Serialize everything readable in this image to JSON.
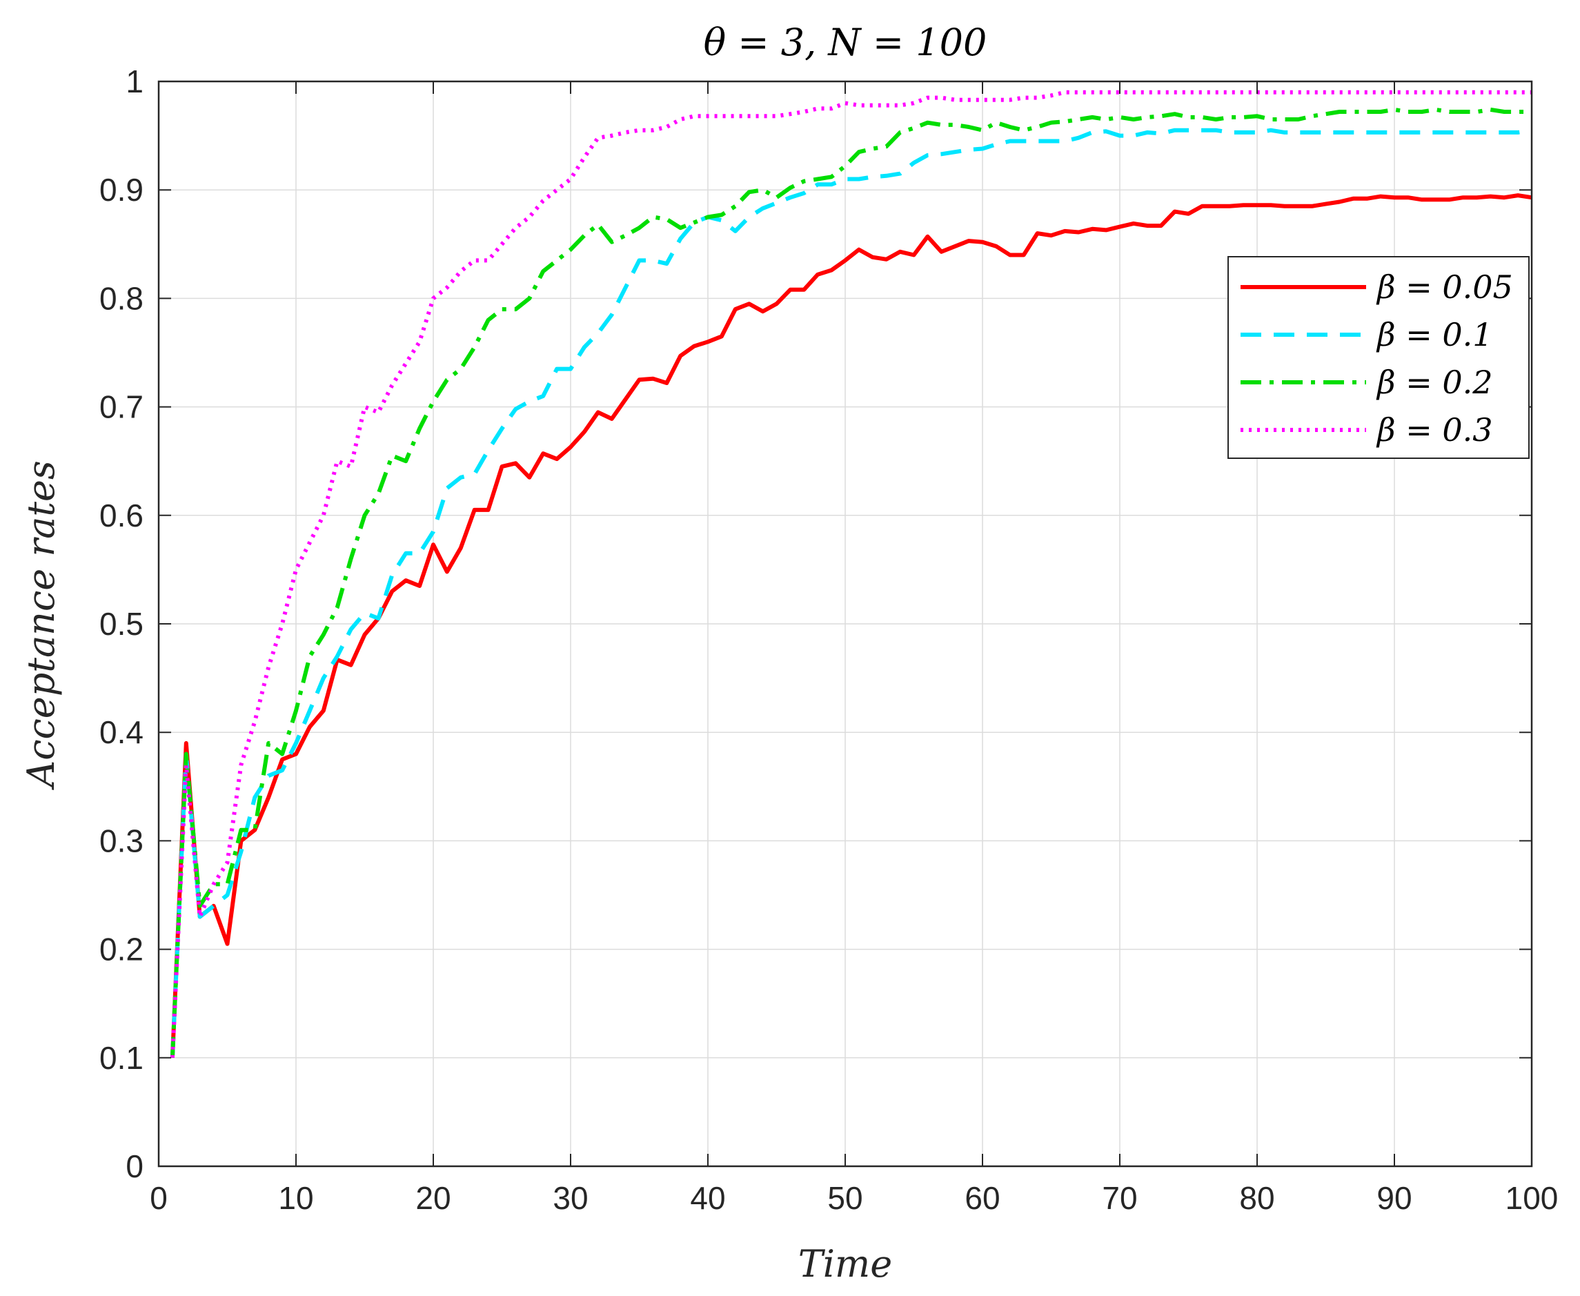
{
  "chart_data": {
    "type": "line",
    "title": "θ = 3, N = 100",
    "xlabel": "Time",
    "ylabel": "Acceptance rates",
    "xlim": [
      0,
      100
    ],
    "ylim": [
      0,
      1
    ],
    "xticks": [
      0,
      10,
      20,
      30,
      40,
      50,
      60,
      70,
      80,
      90,
      100
    ],
    "yticks": [
      0,
      0.1,
      0.2,
      0.3,
      0.4,
      0.5,
      0.6,
      0.7,
      0.8,
      0.9,
      1
    ],
    "xtick_labels": [
      "0",
      "10",
      "20",
      "30",
      "40",
      "50",
      "60",
      "70",
      "80",
      "90",
      "100"
    ],
    "ytick_labels": [
      "0",
      "0.1",
      "0.2",
      "0.3",
      "0.4",
      "0.5",
      "0.6",
      "0.7",
      "0.8",
      "0.9",
      "1"
    ],
    "grid": true,
    "legend_position": "right",
    "series": [
      {
        "name": "β = 0.05",
        "color": "#ff0000",
        "style": "solid",
        "x": [
          1,
          2,
          3,
          4,
          5,
          6,
          7,
          8,
          9,
          10,
          11,
          12,
          13,
          14,
          15,
          16,
          17,
          18,
          19,
          20,
          21,
          22,
          23,
          24,
          25,
          26,
          27,
          28,
          29,
          30,
          31,
          32,
          33,
          34,
          35,
          36,
          37,
          38,
          39,
          40,
          41,
          42,
          43,
          44,
          45,
          46,
          47,
          48,
          49,
          50,
          51,
          52,
          53,
          54,
          55,
          56,
          57,
          58,
          59,
          60,
          61,
          62,
          63,
          64,
          65,
          66,
          67,
          68,
          69,
          70,
          71,
          72,
          73,
          74,
          75,
          76,
          77,
          78,
          79,
          80,
          81,
          82,
          83,
          84,
          85,
          86,
          87,
          88,
          89,
          90,
          91,
          92,
          93,
          94,
          95,
          96,
          97,
          98,
          99,
          100
        ],
        "y": [
          0.1,
          0.39,
          0.23,
          0.24,
          0.205,
          0.3,
          0.31,
          0.34,
          0.375,
          0.38,
          0.405,
          0.42,
          0.467,
          0.462,
          0.49,
          0.505,
          0.53,
          0.54,
          0.535,
          0.573,
          0.548,
          0.57,
          0.605,
          0.605,
          0.645,
          0.648,
          0.635,
          0.657,
          0.652,
          0.663,
          0.677,
          0.695,
          0.689,
          0.707,
          0.725,
          0.726,
          0.722,
          0.747,
          0.756,
          0.76,
          0.765,
          0.79,
          0.795,
          0.788,
          0.795,
          0.808,
          0.808,
          0.822,
          0.826,
          0.835,
          0.845,
          0.838,
          0.836,
          0.843,
          0.84,
          0.857,
          0.843,
          0.848,
          0.853,
          0.852,
          0.848,
          0.84,
          0.84,
          0.86,
          0.858,
          0.862,
          0.861,
          0.864,
          0.863,
          0.866,
          0.869,
          0.867,
          0.867,
          0.88,
          0.878,
          0.885,
          0.885,
          0.885,
          0.886,
          0.886,
          0.886,
          0.885,
          0.885,
          0.885,
          0.887,
          0.889,
          0.892,
          0.892,
          0.894,
          0.893,
          0.893,
          0.891,
          0.891,
          0.891,
          0.893,
          0.893,
          0.894,
          0.893,
          0.895,
          0.893
        ]
      },
      {
        "name": "β = 0.1",
        "color": "#00e5ff",
        "style": "dashed",
        "x": [
          1,
          2,
          3,
          4,
          5,
          6,
          7,
          8,
          9,
          10,
          11,
          12,
          13,
          14,
          15,
          16,
          17,
          18,
          19,
          20,
          21,
          22,
          23,
          24,
          25,
          26,
          27,
          28,
          29,
          30,
          31,
          32,
          33,
          34,
          35,
          36,
          37,
          38,
          39,
          40,
          41,
          42,
          43,
          44,
          45,
          46,
          47,
          48,
          49,
          50,
          51,
          52,
          53,
          54,
          55,
          56,
          57,
          58,
          59,
          60,
          61,
          62,
          63,
          64,
          65,
          66,
          67,
          68,
          69,
          70,
          71,
          72,
          73,
          74,
          75,
          76,
          77,
          78,
          79,
          80,
          81,
          82,
          83,
          84,
          85,
          86,
          87,
          88,
          89,
          90,
          91,
          92,
          93,
          94,
          95,
          96,
          97,
          98,
          99,
          100
        ],
        "y": [
          0.1,
          0.38,
          0.23,
          0.24,
          0.25,
          0.29,
          0.34,
          0.36,
          0.365,
          0.39,
          0.42,
          0.45,
          0.47,
          0.495,
          0.51,
          0.505,
          0.545,
          0.565,
          0.565,
          0.585,
          0.625,
          0.635,
          0.638,
          0.66,
          0.68,
          0.698,
          0.705,
          0.71,
          0.735,
          0.735,
          0.755,
          0.768,
          0.785,
          0.81,
          0.835,
          0.835,
          0.832,
          0.855,
          0.87,
          0.875,
          0.872,
          0.862,
          0.875,
          0.883,
          0.888,
          0.893,
          0.897,
          0.905,
          0.905,
          0.91,
          0.91,
          0.912,
          0.913,
          0.915,
          0.925,
          0.932,
          0.933,
          0.935,
          0.937,
          0.938,
          0.942,
          0.945,
          0.945,
          0.945,
          0.945,
          0.945,
          0.948,
          0.953,
          0.954,
          0.95,
          0.95,
          0.953,
          0.952,
          0.955,
          0.955,
          0.955,
          0.955,
          0.953,
          0.953,
          0.953,
          0.955,
          0.953,
          0.953,
          0.953,
          0.953,
          0.953,
          0.953,
          0.953,
          0.953,
          0.953,
          0.953,
          0.953,
          0.953,
          0.953,
          0.953,
          0.953,
          0.953,
          0.953,
          0.953,
          0.955
        ]
      },
      {
        "name": "β = 0.2",
        "color": "#00dd00",
        "style": "dashdot",
        "x": [
          1,
          2,
          3,
          4,
          5,
          6,
          7,
          8,
          9,
          10,
          11,
          12,
          13,
          14,
          15,
          16,
          17,
          18,
          19,
          20,
          21,
          22,
          23,
          24,
          25,
          26,
          27,
          28,
          29,
          30,
          31,
          32,
          33,
          34,
          35,
          36,
          37,
          38,
          39,
          40,
          41,
          42,
          43,
          44,
          45,
          46,
          47,
          48,
          49,
          50,
          51,
          52,
          53,
          54,
          55,
          56,
          57,
          58,
          59,
          60,
          61,
          62,
          63,
          64,
          65,
          66,
          67,
          68,
          69,
          70,
          71,
          72,
          73,
          74,
          75,
          76,
          77,
          78,
          79,
          80,
          81,
          82,
          83,
          84,
          85,
          86,
          87,
          88,
          89,
          90,
          91,
          92,
          93,
          94,
          95,
          96,
          97,
          98,
          99,
          100
        ],
        "y": [
          0.1,
          0.38,
          0.24,
          0.26,
          0.26,
          0.31,
          0.31,
          0.39,
          0.38,
          0.42,
          0.47,
          0.49,
          0.515,
          0.56,
          0.6,
          0.62,
          0.655,
          0.65,
          0.68,
          0.705,
          0.725,
          0.735,
          0.755,
          0.78,
          0.79,
          0.79,
          0.8,
          0.825,
          0.835,
          0.845,
          0.858,
          0.868,
          0.852,
          0.858,
          0.865,
          0.875,
          0.873,
          0.865,
          0.87,
          0.875,
          0.877,
          0.885,
          0.898,
          0.9,
          0.893,
          0.902,
          0.908,
          0.91,
          0.912,
          0.922,
          0.935,
          0.938,
          0.94,
          0.953,
          0.957,
          0.962,
          0.96,
          0.96,
          0.958,
          0.955,
          0.962,
          0.958,
          0.955,
          0.958,
          0.962,
          0.963,
          0.965,
          0.967,
          0.965,
          0.967,
          0.965,
          0.967,
          0.968,
          0.97,
          0.967,
          0.967,
          0.965,
          0.967,
          0.967,
          0.968,
          0.965,
          0.965,
          0.965,
          0.968,
          0.97,
          0.972,
          0.972,
          0.972,
          0.972,
          0.974,
          0.972,
          0.972,
          0.974,
          0.972,
          0.972,
          0.972,
          0.974,
          0.972,
          0.972,
          0.972
        ]
      },
      {
        "name": "β = 0.3",
        "color": "#ff00ff",
        "style": "dotted",
        "x": [
          1,
          2,
          3,
          4,
          5,
          6,
          7,
          8,
          9,
          10,
          11,
          12,
          13,
          14,
          15,
          16,
          17,
          18,
          19,
          20,
          21,
          22,
          23,
          24,
          25,
          26,
          27,
          28,
          29,
          30,
          31,
          32,
          33,
          34,
          35,
          36,
          37,
          38,
          39,
          40,
          41,
          42,
          43,
          44,
          45,
          46,
          47,
          48,
          49,
          50,
          51,
          52,
          53,
          54,
          55,
          56,
          57,
          58,
          59,
          60,
          61,
          62,
          63,
          64,
          65,
          66,
          67,
          68,
          69,
          70,
          71,
          72,
          73,
          74,
          75,
          76,
          77,
          78,
          79,
          80,
          81,
          82,
          83,
          84,
          85,
          86,
          87,
          88,
          89,
          90,
          91,
          92,
          93,
          94,
          95,
          96,
          97,
          98,
          99,
          100
        ],
        "y": [
          0.1,
          0.37,
          0.23,
          0.26,
          0.28,
          0.37,
          0.41,
          0.46,
          0.5,
          0.55,
          0.575,
          0.6,
          0.65,
          0.645,
          0.7,
          0.695,
          0.72,
          0.74,
          0.76,
          0.8,
          0.81,
          0.825,
          0.835,
          0.835,
          0.85,
          0.865,
          0.875,
          0.89,
          0.9,
          0.91,
          0.93,
          0.948,
          0.95,
          0.953,
          0.955,
          0.955,
          0.958,
          0.965,
          0.968,
          0.968,
          0.968,
          0.968,
          0.968,
          0.968,
          0.968,
          0.97,
          0.972,
          0.975,
          0.975,
          0.98,
          0.978,
          0.978,
          0.978,
          0.978,
          0.98,
          0.985,
          0.985,
          0.983,
          0.983,
          0.983,
          0.983,
          0.983,
          0.985,
          0.985,
          0.987,
          0.99,
          0.99,
          0.99,
          0.99,
          0.99,
          0.99,
          0.99,
          0.99,
          0.99,
          0.99,
          0.99,
          0.99,
          0.99,
          0.99,
          0.99,
          0.99,
          0.99,
          0.99,
          0.99,
          0.99,
          0.99,
          0.99,
          0.99,
          0.99,
          0.99,
          0.99,
          0.99,
          0.99,
          0.99,
          0.99,
          0.99,
          0.99,
          0.99,
          0.99,
          0.99
        ]
      }
    ]
  }
}
